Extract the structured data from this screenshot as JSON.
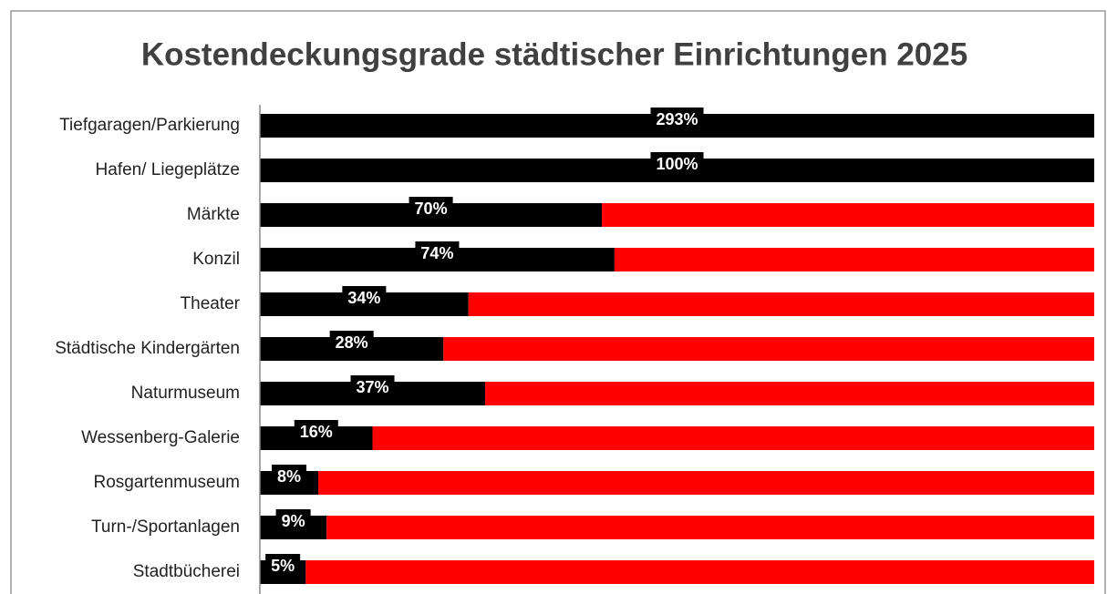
{
  "chart_data": {
    "type": "stacked_barh",
    "title": "Kostendeckungsgrade städtischer Einrichtungen 2025",
    "categories": [
      "Tiefgaragen/Parkierung",
      "Hafen/ Liegeplätze",
      "Märkte",
      "Konzil",
      "Theater",
      "Städtische Kindergärten",
      "Naturmuseum",
      "Wessenberg-Galerie",
      "Rosgartenmuseum",
      "Turn-/Sportanlagen",
      "Stadtbücherei"
    ],
    "series": [
      {
        "color": "#000000",
        "values": [
          100,
          100,
          41,
          42.5,
          25,
          22,
          27,
          13.5,
          7,
          8,
          5.5
        ]
      },
      {
        "color": "#ff0000",
        "values": [
          0,
          0,
          59,
          57.5,
          75,
          78,
          73,
          86.5,
          93,
          92,
          94.5
        ]
      }
    ],
    "data_labels": [
      "293%",
      "100%",
      "70%",
      "74%",
      "34%",
      "28%",
      "37%",
      "16%",
      "8%",
      "9%",
      "5%"
    ],
    "xlim": [
      0,
      100
    ]
  }
}
